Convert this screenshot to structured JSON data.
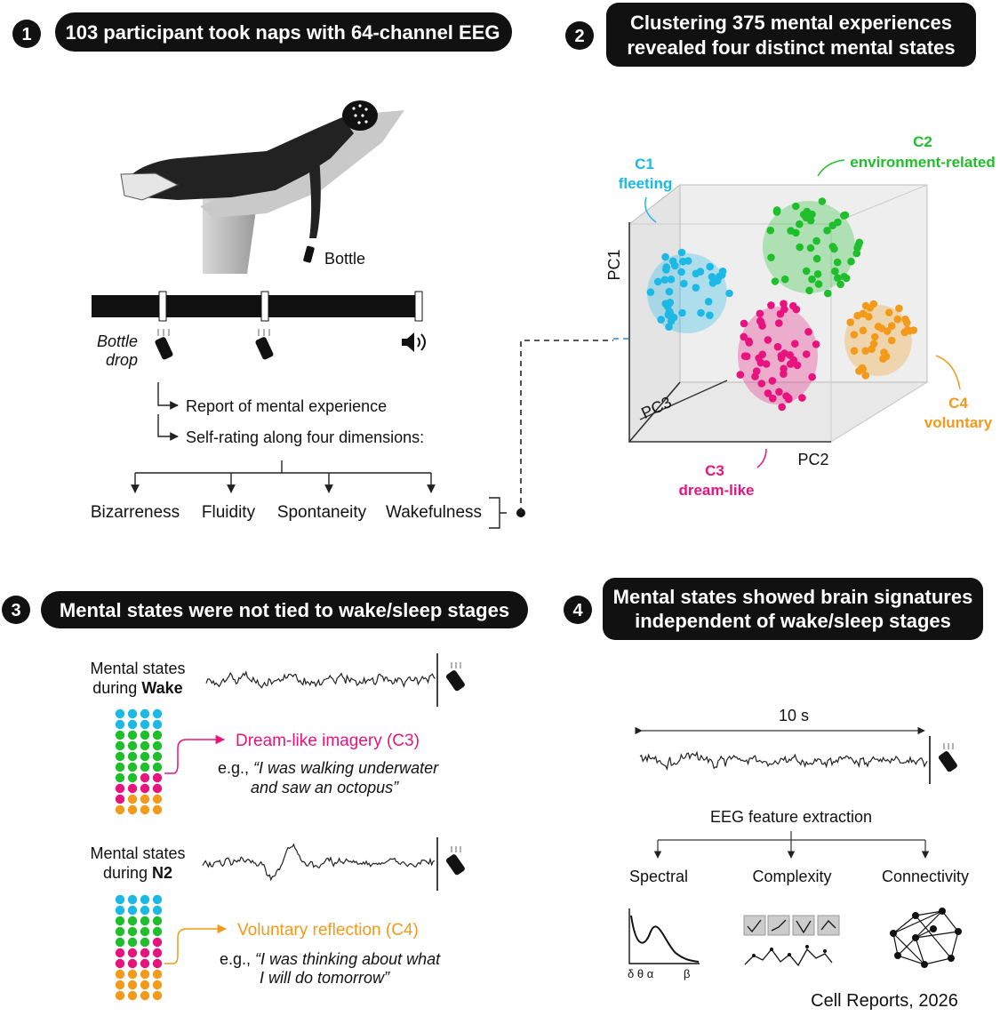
{
  "panel1": {
    "number": "1",
    "title": "103 participant took naps with 64-channel EEG",
    "bottle_label": "Bottle",
    "bottle_drop": [
      "Bottle",
      "drop"
    ],
    "steps": [
      "Report of mental experience",
      "Self-rating along four dimensions:"
    ],
    "dimensions": [
      "Bizarreness",
      "Fluidity",
      "Spontaneity",
      "Wakefulness"
    ]
  },
  "panel2": {
    "number": "2",
    "title": [
      "Clustering 375 mental experiences",
      "revealed four distinct mental states"
    ],
    "axes": [
      "PC1",
      "PC2",
      "PC3"
    ],
    "clusters": [
      {
        "id": "C1",
        "label": "fleeting",
        "color": "#1cb8e6"
      },
      {
        "id": "C2",
        "label": "environment-related",
        "color": "#1fbf2c"
      },
      {
        "id": "C3",
        "label": "dream-like",
        "color": "#e8137e"
      },
      {
        "id": "C4",
        "label": "voluntary",
        "color": "#f39a1a"
      }
    ]
  },
  "panel3": {
    "number": "3",
    "title": "Mental states were not tied to wake/sleep stages",
    "stages": [
      {
        "heading": "Mental states",
        "during": "during",
        "stage": "Wake",
        "state": "Dream-like imagery (C3)",
        "example_prefix": "e.g., ",
        "example": [
          "“I was walking underwater",
          "and saw an octopus”"
        ]
      },
      {
        "heading": "Mental states",
        "during": "during",
        "stage": "N2",
        "state": "Voluntary reflection (C4)",
        "example_prefix": "e.g., ",
        "example": [
          "“I was thinking about what",
          "I will do tomorrow”"
        ]
      }
    ]
  },
  "panel4": {
    "number": "4",
    "title": [
      "Mental states showed brain signatures",
      "independent of wake/sleep stages"
    ],
    "duration": "10 s",
    "step": "EEG feature extraction",
    "features": [
      "Spectral",
      "Complexity",
      "Connectivity"
    ],
    "bands": [
      "δ θ α",
      "β"
    ]
  },
  "credit": "Cell Reports, 2026"
}
